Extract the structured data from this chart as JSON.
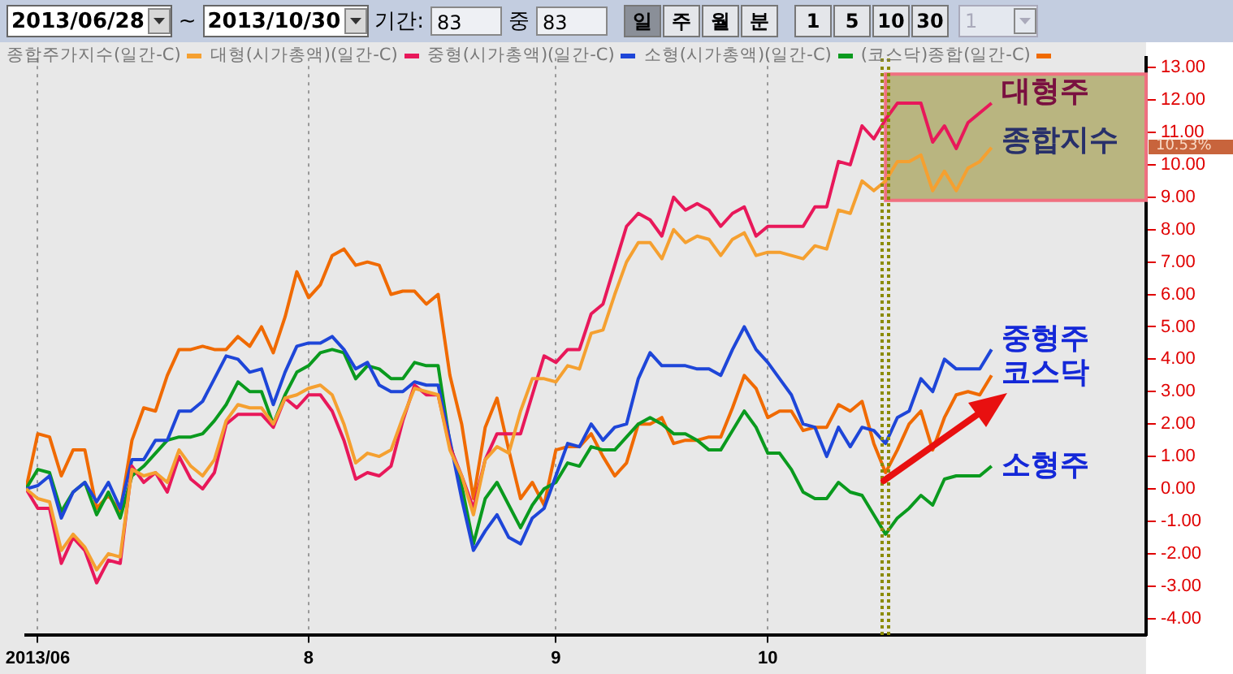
{
  "chart_data": {
    "type": "line",
    "categories": [
      null,
      "2013/06",
      null,
      null,
      null,
      null,
      null,
      null,
      null,
      null,
      null,
      null,
      null,
      null,
      null,
      null,
      null,
      null,
      null,
      null,
      null,
      null,
      null,
      null,
      "8",
      null,
      null,
      null,
      null,
      null,
      null,
      null,
      null,
      null,
      null,
      null,
      null,
      null,
      null,
      null,
      null,
      null,
      null,
      null,
      null,
      "9",
      null,
      null,
      null,
      null,
      null,
      null,
      null,
      null,
      null,
      null,
      null,
      null,
      null,
      null,
      null,
      null,
      null,
      "10",
      null,
      null,
      null,
      null,
      null,
      null,
      null,
      null,
      null,
      null,
      null,
      null,
      null,
      null,
      null,
      null,
      null,
      null,
      null
    ],
    "series": [
      {
        "name": "종합주가지수(일간-C)",
        "color": "#f5a030",
        "values": [
          0,
          -0.3,
          -0.4,
          -1.9,
          -1.4,
          -1.8,
          -2.5,
          -2.0,
          -2.1,
          0.6,
          0.4,
          0.5,
          0.2,
          1.2,
          0.7,
          0.4,
          0.9,
          2.1,
          2.6,
          2.5,
          2.5,
          2.0,
          2.8,
          2.9,
          3.1,
          3.2,
          2.9,
          2.0,
          0.8,
          1.1,
          1.0,
          1.2,
          2.2,
          3.1,
          3.0,
          2.9,
          1.2,
          0.4,
          -0.8,
          0.9,
          1.3,
          1.1,
          2.4,
          3.4,
          3.4,
          3.3,
          3.8,
          3.7,
          4.8,
          4.9,
          6.0,
          7.0,
          7.6,
          7.6,
          7.1,
          8.0,
          7.6,
          7.8,
          7.7,
          7.2,
          7.7,
          7.9,
          7.2,
          7.3,
          7.3,
          7.2,
          7.1,
          7.5,
          7.4,
          8.6,
          8.5,
          9.5,
          9.2,
          9.5,
          10.1,
          10.1,
          10.3,
          9.2,
          9.8,
          9.2,
          9.9,
          10.1,
          10.53
        ]
      },
      {
        "name": "대형(시가총액)(일간-C)",
        "color": "#e8185a",
        "values": [
          0,
          -0.6,
          -0.6,
          -2.3,
          -1.5,
          -1.9,
          -2.9,
          -2.2,
          -2.3,
          0.7,
          0.2,
          0.5,
          -0.1,
          1.0,
          0.3,
          0.0,
          0.5,
          2.0,
          2.3,
          2.3,
          2.3,
          1.9,
          2.8,
          2.5,
          2.9,
          2.9,
          2.4,
          1.5,
          0.3,
          0.5,
          0.4,
          0.7,
          2.1,
          3.2,
          2.9,
          2.9,
          1.3,
          0.4,
          -0.6,
          0.9,
          1.7,
          1.7,
          1.7,
          2.9,
          4.1,
          3.9,
          4.3,
          4.3,
          5.4,
          5.7,
          6.9,
          8.1,
          8.5,
          8.3,
          7.8,
          9.0,
          8.6,
          8.8,
          8.6,
          8.1,
          8.5,
          8.7,
          7.8,
          8.1,
          8.1,
          8.1,
          8.1,
          8.7,
          8.7,
          10.1,
          10.0,
          11.2,
          10.8,
          11.4,
          11.9,
          11.9,
          11.9,
          10.7,
          11.2,
          10.5,
          11.3,
          11.6,
          11.9
        ]
      },
      {
        "name": "중형(시가총액)(일간-C)",
        "color": "#1e46d8",
        "values": [
          0,
          0.1,
          0.4,
          -0.9,
          -0.1,
          0.2,
          -0.4,
          0.2,
          -0.6,
          0.9,
          0.9,
          1.5,
          1.5,
          2.4,
          2.4,
          2.7,
          3.4,
          4.1,
          4.0,
          3.6,
          3.7,
          2.6,
          3.6,
          4.4,
          4.5,
          4.5,
          4.7,
          4.3,
          3.7,
          3.9,
          3.2,
          3.0,
          3.0,
          3.3,
          3.2,
          3.2,
          1.5,
          -0.3,
          -1.9,
          -1.3,
          -0.8,
          -1.5,
          -1.7,
          -0.9,
          -0.6,
          0.4,
          1.4,
          1.3,
          2.0,
          1.5,
          1.9,
          2.0,
          3.4,
          4.2,
          3.8,
          3.8,
          3.8,
          3.7,
          3.7,
          3.5,
          4.3,
          5.0,
          4.3,
          3.9,
          3.4,
          2.9,
          2.0,
          1.9,
          1.0,
          1.9,
          1.3,
          1.9,
          1.8,
          1.4,
          2.2,
          2.4,
          3.4,
          3.0,
          4.0,
          3.7,
          3.7,
          3.7,
          4.3
        ]
      },
      {
        "name": "소형(시가총액)(일간-C)",
        "color": "#0a9a1e",
        "values": [
          0,
          0.6,
          0.5,
          -0.7,
          -0.1,
          0.2,
          -0.8,
          -0.1,
          -0.9,
          0.4,
          0.7,
          1.1,
          1.5,
          1.6,
          1.6,
          1.7,
          2.1,
          2.6,
          3.3,
          3.0,
          3.0,
          2.0,
          2.9,
          3.6,
          3.8,
          4.2,
          4.3,
          4.2,
          3.4,
          3.8,
          3.7,
          3.4,
          3.4,
          3.9,
          3.8,
          3.8,
          1.4,
          0.1,
          -1.7,
          -0.3,
          0.2,
          -0.5,
          -1.2,
          -0.5,
          0.0,
          0.2,
          0.8,
          0.7,
          1.3,
          1.2,
          1.2,
          1.6,
          2.0,
          2.2,
          2.0,
          1.7,
          1.7,
          1.5,
          1.2,
          1.2,
          1.8,
          2.4,
          1.9,
          1.1,
          1.1,
          0.6,
          -0.1,
          -0.3,
          -0.3,
          0.2,
          -0.1,
          -0.2,
          -0.8,
          -1.4,
          -0.9,
          -0.6,
          -0.2,
          -0.5,
          0.3,
          0.4,
          0.4,
          0.4,
          0.7
        ]
      },
      {
        "name": "(코스닥)종합(일간-C)",
        "color": "#f06a00",
        "values": [
          0,
          1.7,
          1.6,
          0.4,
          1.2,
          1.2,
          -0.6,
          -0.2,
          -0.7,
          1.5,
          2.5,
          2.4,
          3.5,
          4.3,
          4.3,
          4.4,
          4.3,
          4.3,
          4.7,
          4.4,
          5.0,
          4.2,
          5.3,
          6.7,
          5.9,
          6.3,
          7.2,
          7.4,
          6.9,
          7.0,
          6.9,
          6.0,
          6.1,
          6.1,
          5.7,
          6.0,
          3.5,
          2.0,
          -0.3,
          1.9,
          2.8,
          1.2,
          -0.3,
          0.2,
          -0.5,
          1.2,
          1.3,
          1.3,
          1.7,
          1.0,
          0.4,
          0.8,
          2.0,
          2.0,
          2.2,
          1.4,
          1.5,
          1.5,
          1.6,
          1.6,
          2.5,
          3.5,
          3.1,
          2.2,
          2.4,
          2.4,
          1.8,
          1.9,
          1.9,
          2.6,
          2.4,
          2.7,
          1.4,
          0.5,
          1.2,
          2.0,
          2.4,
          1.2,
          2.2,
          2.9,
          3.0,
          2.9,
          3.5
        ]
      }
    ],
    "ylim": [
      -4.5,
      13.3
    ],
    "yticks": [
      {
        "value": -4,
        "label": "-4.00"
      },
      {
        "value": -3,
        "label": "-3.00"
      },
      {
        "value": -2,
        "label": "-2.00"
      },
      {
        "value": -1,
        "label": "-1.00"
      },
      {
        "value": 0,
        "label": "0.00"
      },
      {
        "value": 1,
        "label": "1.00"
      },
      {
        "value": 2,
        "label": "2.00"
      },
      {
        "value": 3,
        "label": "3.00"
      },
      {
        "value": 4,
        "label": "4.00"
      },
      {
        "value": 5,
        "label": "5.00"
      },
      {
        "value": 6,
        "label": "6.00"
      },
      {
        "value": 7,
        "label": "7.00"
      },
      {
        "value": 8,
        "label": "8.00"
      },
      {
        "value": 9,
        "label": "9.00"
      },
      {
        "value": 10,
        "label": "10.00"
      },
      {
        "value": 11,
        "label": "11.00"
      },
      {
        "value": 12,
        "label": "12.00"
      },
      {
        "value": 13,
        "label": "13.00"
      }
    ],
    "grid": "x",
    "legend": "top",
    "bands": [
      {
        "axis": "y",
        "from": 8.9,
        "to": 12.8,
        "color": "#a09a48"
      }
    ],
    "annotations": [
      "2013/06/28",
      "~",
      "2013/10/30",
      "기간:",
      "83",
      "중",
      "83",
      "일",
      "주",
      "월",
      "분",
      "1",
      "5",
      "10",
      "30",
      "1",
      "10.53%",
      "대형주",
      "종합지수",
      "중형주",
      "코스닥",
      "소형주"
    ]
  }
}
